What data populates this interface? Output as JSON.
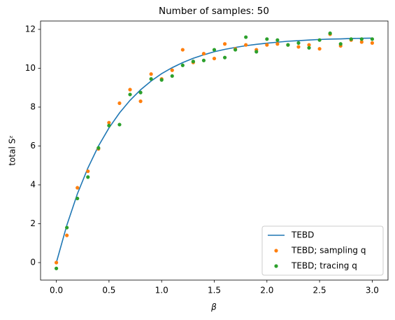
{
  "chart_data": {
    "type": "line",
    "title": "Number of samples: 50",
    "x_label": "β",
    "y_label": "total Sᶻ",
    "x": [
      0.0,
      0.1,
      0.2,
      0.3,
      0.4,
      0.5,
      0.6,
      0.7,
      0.8,
      0.9,
      1.0,
      1.1,
      1.2,
      1.3,
      1.4,
      1.5,
      1.6,
      1.7,
      1.8,
      1.9,
      2.0,
      2.1,
      2.2,
      2.3,
      2.4,
      2.5,
      2.6,
      2.7,
      2.8,
      2.9,
      3.0
    ],
    "series": [
      {
        "name": "TEBD",
        "color": "#1f77b4",
        "style": "line",
        "values": [
          0,
          1.93,
          3.54,
          4.87,
          6.0,
          6.93,
          7.7,
          8.35,
          8.89,
          9.34,
          9.72,
          10.03,
          10.29,
          10.51,
          10.69,
          10.85,
          10.97,
          11.07,
          11.16,
          11.23,
          11.29,
          11.34,
          11.39,
          11.42,
          11.45,
          11.48,
          11.5,
          11.51,
          11.53,
          11.54,
          11.55
        ]
      },
      {
        "name": "TEBD; sampling q",
        "color": "#ff7f0e",
        "style": "markers",
        "values": [
          0,
          1.4,
          3.85,
          4.7,
          5.85,
          7.2,
          8.2,
          8.9,
          8.3,
          9.7,
          9.45,
          9.9,
          10.95,
          10.3,
          10.75,
          10.5,
          11.25,
          11.0,
          11.2,
          10.95,
          11.2,
          11.25,
          11.2,
          11.1,
          11.2,
          11.0,
          11.75,
          11.15,
          11.45,
          11.35,
          11.3
        ]
      },
      {
        "name": "TEBD; tracing q",
        "color": "#2ca02c",
        "style": "markers",
        "values": [
          -0.3,
          1.8,
          3.3,
          4.4,
          5.9,
          7.05,
          7.1,
          8.65,
          8.75,
          9.45,
          9.4,
          9.6,
          10.15,
          10.35,
          10.4,
          10.95,
          10.55,
          10.95,
          11.6,
          10.85,
          11.5,
          11.45,
          11.2,
          11.3,
          11.05,
          11.45,
          11.8,
          11.25,
          11.5,
          11.5,
          11.5
        ]
      }
    ],
    "xlim": [
      -0.15,
      3.15
    ],
    "xticks": [
      {
        "value": 0,
        "label": "0.0"
      },
      {
        "value": 0.5,
        "label": "0.5"
      },
      {
        "value": 1,
        "label": "1.0"
      },
      {
        "value": 1.5,
        "label": "1.5"
      },
      {
        "value": 2,
        "label": "2.0"
      },
      {
        "value": 2.5,
        "label": "2.5"
      },
      {
        "value": 3,
        "label": "3.0"
      }
    ],
    "ylim": [
      -0.9,
      12.43
    ],
    "yticks": [
      0,
      2,
      4,
      6,
      8,
      10,
      12
    ],
    "legend": "lower right",
    "grid": false
  }
}
